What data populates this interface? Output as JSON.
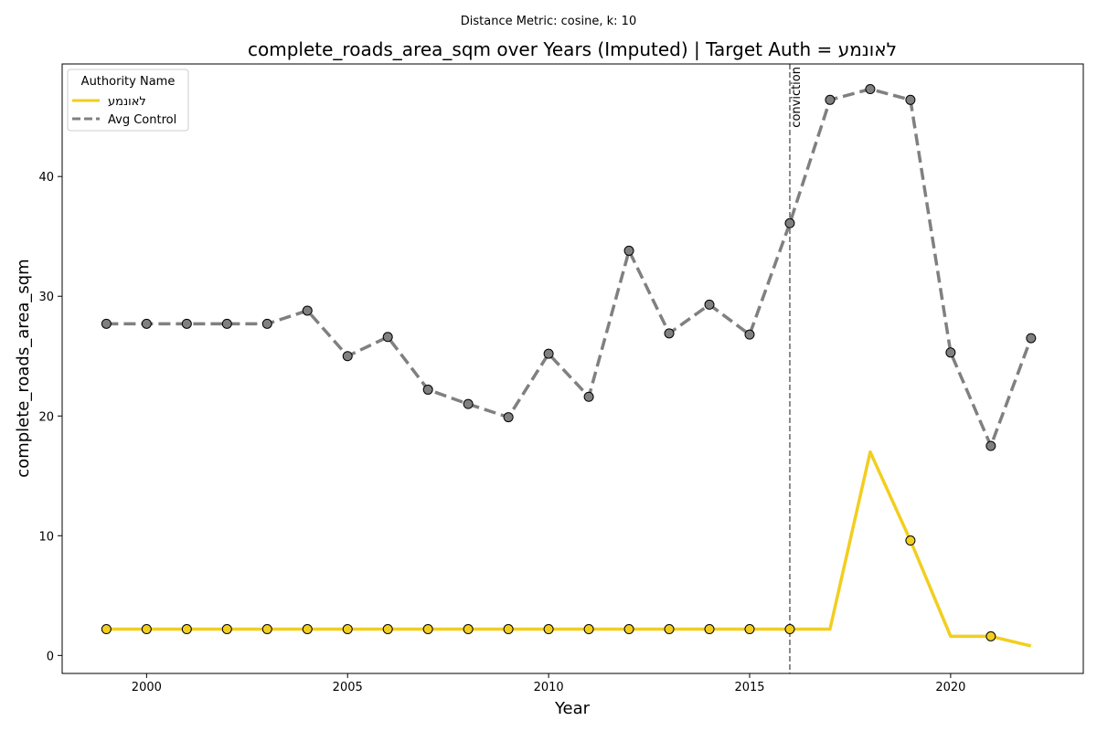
{
  "chart_data": {
    "type": "line",
    "suptitle": "Distance Metric: cosine, k: 10",
    "title": "complete_roads_area_sqm over Years (Imputed) | Target Auth = לאונמע",
    "xlabel": "Year",
    "ylabel": "complete_roads_area_sqm",
    "xlim": [
      1997.9,
      2023.3
    ],
    "ylim": [
      -1.5,
      49.4
    ],
    "xticks": [
      2000,
      2005,
      2010,
      2015,
      2020
    ],
    "yticks": [
      0,
      10,
      20,
      30,
      40
    ],
    "x": [
      1999,
      2000,
      2001,
      2002,
      2003,
      2004,
      2005,
      2006,
      2007,
      2008,
      2009,
      2010,
      2011,
      2012,
      2013,
      2014,
      2015,
      2016,
      2017,
      2018,
      2019,
      2020,
      2021,
      2022
    ],
    "series": [
      {
        "name": "לאונמע",
        "color": "#f2ce1f",
        "style": "solid",
        "values": [
          2.2,
          2.2,
          2.2,
          2.2,
          2.2,
          2.2,
          2.2,
          2.2,
          2.2,
          2.2,
          2.2,
          2.2,
          2.2,
          2.2,
          2.2,
          2.2,
          2.2,
          2.2,
          2.2,
          17.0,
          9.6,
          1.6,
          1.6,
          0.8
        ],
        "markers": [
          1999,
          2000,
          2001,
          2002,
          2003,
          2004,
          2005,
          2006,
          2007,
          2008,
          2009,
          2010,
          2011,
          2012,
          2013,
          2014,
          2015,
          2016,
          2019,
          2021
        ],
        "marker_color": "#f2ce1f"
      },
      {
        "name": "Avg Control",
        "color": "#808080",
        "style": "dashed",
        "values": [
          27.7,
          27.7,
          27.7,
          27.7,
          27.7,
          28.8,
          25.0,
          26.6,
          22.2,
          21.0,
          19.9,
          25.2,
          21.6,
          33.8,
          26.9,
          29.3,
          26.8,
          36.1,
          46.4,
          47.3,
          46.4,
          25.3,
          17.5,
          26.5
        ],
        "markers": [
          1999,
          2000,
          2001,
          2002,
          2003,
          2004,
          2005,
          2006,
          2007,
          2008,
          2009,
          2010,
          2011,
          2012,
          2013,
          2014,
          2015,
          2016,
          2017,
          2018,
          2019,
          2020,
          2021,
          2022
        ],
        "marker_color": "#808080"
      }
    ],
    "vline": {
      "x": 2016,
      "label": "conviction",
      "color": "#666666"
    },
    "legend": {
      "title": "Authority Name",
      "position": "top-left"
    },
    "grid": false
  }
}
